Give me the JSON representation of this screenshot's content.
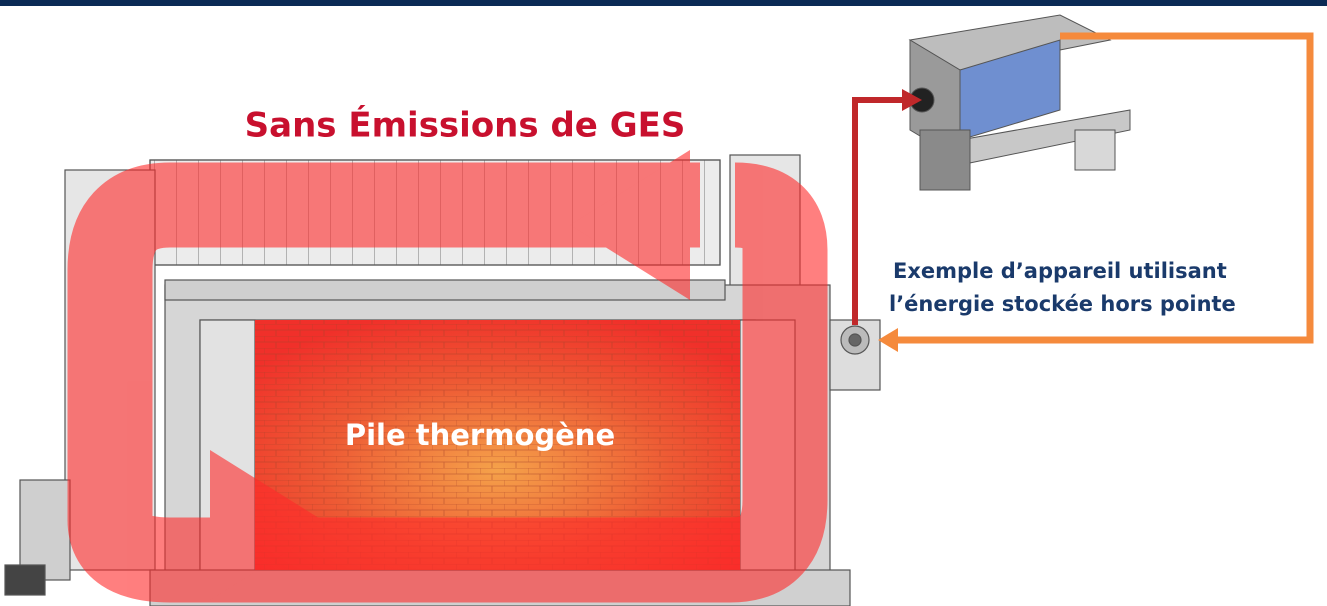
{
  "title": "Sans Émissions de GES",
  "pile_label": "Pile thermogène",
  "device_caption": [
    "Exemple d’appareil utilisant",
    "l’énergie stockée hors pointe"
  ]
}
